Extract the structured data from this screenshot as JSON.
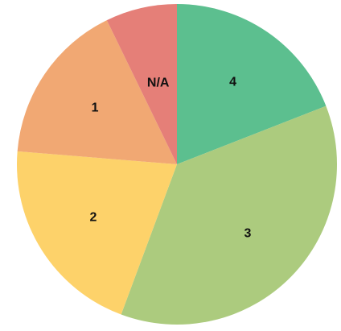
{
  "chart_data": {
    "type": "pie",
    "title": "",
    "start_angle_deg": 0,
    "direction": "clockwise",
    "slices": [
      {
        "label": "4",
        "value": 18.5,
        "color": "#5cbf8f"
      },
      {
        "label": "3",
        "value": 35.5,
        "color": "#accb7e"
      },
      {
        "label": "2",
        "value": 20.0,
        "color": "#fdd26a"
      },
      {
        "label": "1",
        "value": 16.0,
        "color": "#f1a873"
      },
      {
        "label": "N/A",
        "value": 7.0,
        "color": "#e57f78"
      }
    ]
  }
}
